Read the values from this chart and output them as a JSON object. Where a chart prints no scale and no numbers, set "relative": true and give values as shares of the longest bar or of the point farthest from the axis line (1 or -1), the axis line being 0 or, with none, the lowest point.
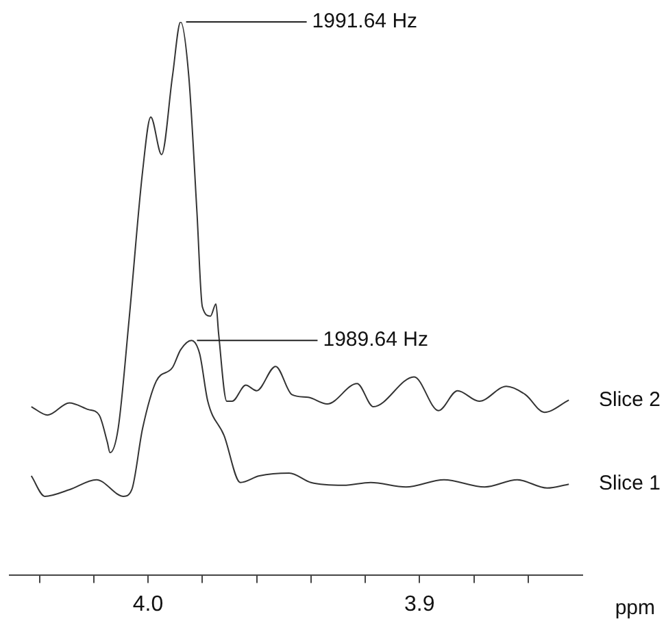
{
  "chart_data": {
    "type": "line",
    "xlabel": "ppm",
    "relative": true,
    "legend": false,
    "grid": false,
    "marker": "none",
    "line_style": "solid",
    "xlim": [
      4.051,
      3.84
    ],
    "xticks": [
      {
        "value": 4.04,
        "label": null
      },
      {
        "value": 4.02,
        "label": null
      },
      {
        "value": 4.0,
        "label": "4.0"
      },
      {
        "value": 3.98,
        "label": null
      },
      {
        "value": 3.96,
        "label": null
      },
      {
        "value": 3.94,
        "label": null
      },
      {
        "value": 3.92,
        "label": null
      },
      {
        "value": 3.9,
        "label": "3.9"
      },
      {
        "value": 3.88,
        "label": null
      },
      {
        "value": 3.86,
        "label": null
      }
    ],
    "annotations": [
      {
        "text": "1991.64 Hz",
        "x": 3.988,
        "y": 1.0
      },
      {
        "text": "1989.64 Hz",
        "x": 3.984,
        "y": 0.424
      }
    ],
    "series": [
      {
        "name": "Slice 2",
        "color": "#333333",
        "x": [
          4.043,
          4.037,
          4.029,
          4.022,
          4.018,
          4.015,
          4.014,
          4.011,
          4.007,
          4.002,
          3.999,
          3.995,
          3.991,
          3.988,
          3.985,
          3.982,
          3.98,
          3.977,
          3.975,
          3.974,
          3.971,
          3.969,
          3.964,
          3.96,
          3.953,
          3.947,
          3.941,
          3.934,
          3.923,
          3.917,
          3.902,
          3.893,
          3.886,
          3.878,
          3.868,
          3.861,
          3.854,
          3.845
        ],
        "values": [
          0.304,
          0.289,
          0.311,
          0.299,
          0.289,
          0.24,
          0.221,
          0.265,
          0.461,
          0.73,
          0.828,
          0.76,
          0.902,
          1.0,
          0.902,
          0.657,
          0.485,
          0.468,
          0.49,
          0.436,
          0.314,
          0.314,
          0.343,
          0.333,
          0.377,
          0.326,
          0.321,
          0.309,
          0.346,
          0.304,
          0.358,
          0.297,
          0.333,
          0.314,
          0.341,
          0.326,
          0.294,
          0.316
        ]
      },
      {
        "name": "Slice 1",
        "color": "#333333",
        "x": [
          4.043,
          4.038,
          4.029,
          4.019,
          4.009,
          4.006,
          4.002,
          3.997,
          3.991,
          3.988,
          3.984,
          3.981,
          3.978,
          3.972,
          3.966,
          3.959,
          3.948,
          3.94,
          3.928,
          3.918,
          3.905,
          3.891,
          3.876,
          3.864,
          3.853,
          3.845
        ],
        "values": [
          0.179,
          0.142,
          0.154,
          0.172,
          0.142,
          0.154,
          0.265,
          0.35,
          0.375,
          0.407,
          0.424,
          0.4,
          0.314,
          0.252,
          0.167,
          0.179,
          0.184,
          0.167,
          0.162,
          0.167,
          0.159,
          0.172,
          0.159,
          0.172,
          0.157,
          0.164
        ]
      }
    ]
  }
}
